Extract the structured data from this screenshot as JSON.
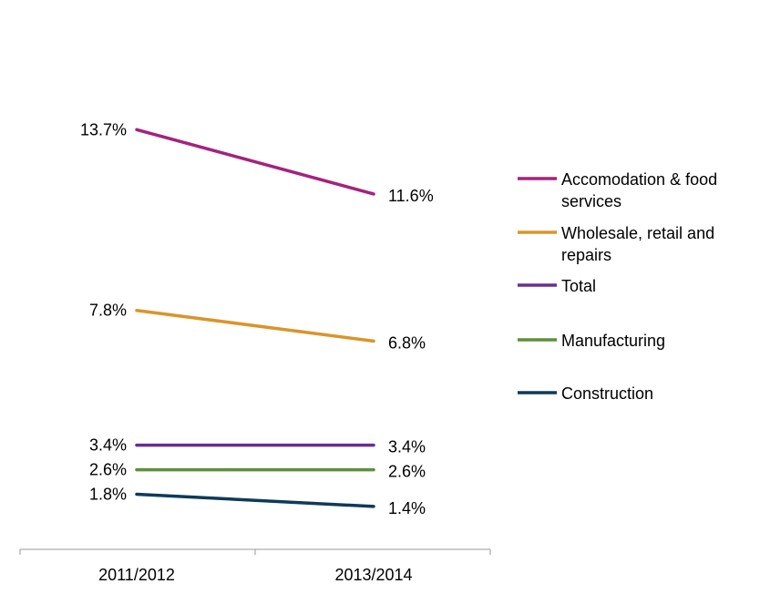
{
  "chart_data": {
    "type": "line",
    "categories": [
      "2011/2012",
      "2013/2014"
    ],
    "ylim": [
      0,
      16
    ],
    "grid": false,
    "legend_position": "right",
    "series": [
      {
        "name": "Accomodation & food services",
        "legend_lines": [
          "Accomodation & food",
          "services"
        ],
        "values": [
          13.7,
          11.6
        ],
        "labels": [
          "13.7%",
          "11.6%"
        ],
        "color": "#A3237E"
      },
      {
        "name": "Wholesale, retail and repairs",
        "legend_lines": [
          "Wholesale, retail and",
          "repairs"
        ],
        "values": [
          7.8,
          6.8
        ],
        "labels": [
          "7.8%",
          "6.8%"
        ],
        "color": "#D9952A"
      },
      {
        "name": "Total",
        "legend_lines": [
          "Total"
        ],
        "values": [
          3.4,
          3.4
        ],
        "labels": [
          "3.4%",
          "3.4%"
        ],
        "color": "#6B2D8E"
      },
      {
        "name": "Manufacturing",
        "legend_lines": [
          "Manufacturing"
        ],
        "values": [
          2.6,
          2.6
        ],
        "labels": [
          "2.6%",
          "2.6%"
        ],
        "color": "#5E8F3A"
      },
      {
        "name": "Construction",
        "legend_lines": [
          "Construction"
        ],
        "values": [
          1.8,
          1.4
        ],
        "labels": [
          "1.8%",
          "1.4%"
        ],
        "color": "#0F3A5A"
      }
    ]
  }
}
